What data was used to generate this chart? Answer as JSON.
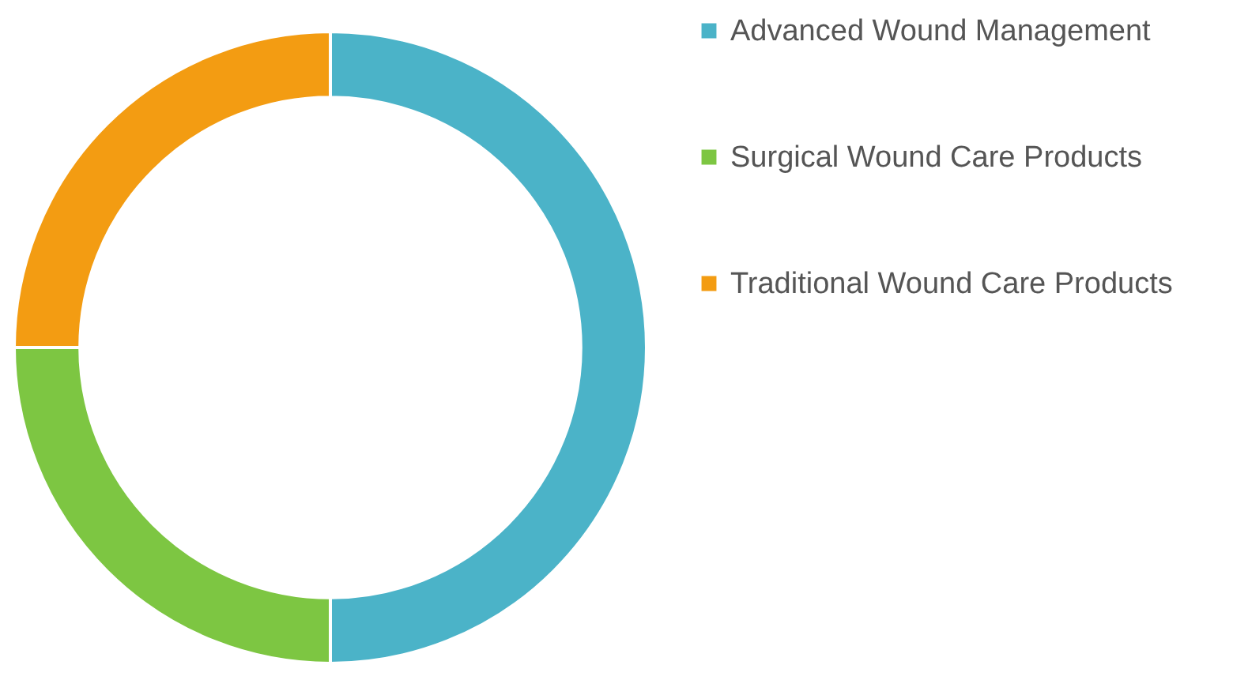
{
  "chart_data": {
    "type": "donut",
    "categories": [
      "Advanced Wound Management",
      "Surgical Wound Care Products",
      "Traditional Wound Care Products"
    ],
    "values": [
      50,
      25,
      25
    ],
    "colors": [
      "#4bb3c8",
      "#7dc642",
      "#f39c12"
    ],
    "legend": "right"
  }
}
